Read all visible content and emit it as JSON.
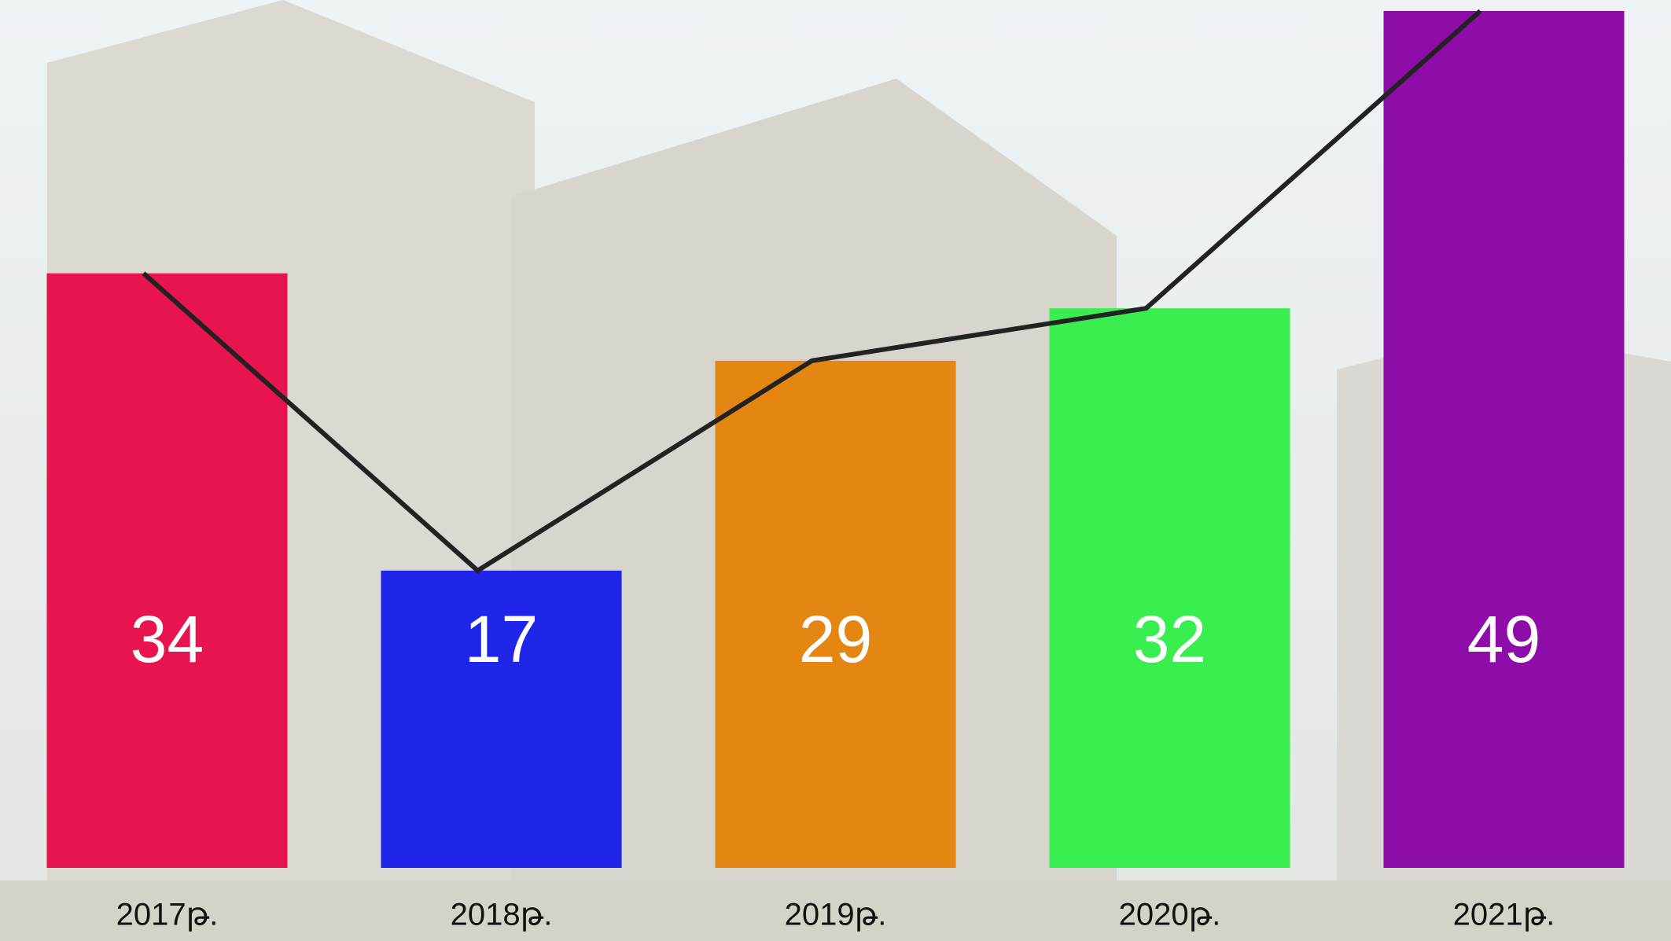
{
  "chart_data": {
    "type": "bar",
    "categories": [
      "2017թ.",
      "2018թ.",
      "2019թ.",
      "2020թ.",
      "2021թ."
    ],
    "values": [
      34,
      17,
      29,
      32,
      49
    ],
    "colors": [
      "#e8144f",
      "#2026e8",
      "#e68612",
      "#39ef50",
      "#8e0da8"
    ],
    "line_color": "#222222"
  }
}
